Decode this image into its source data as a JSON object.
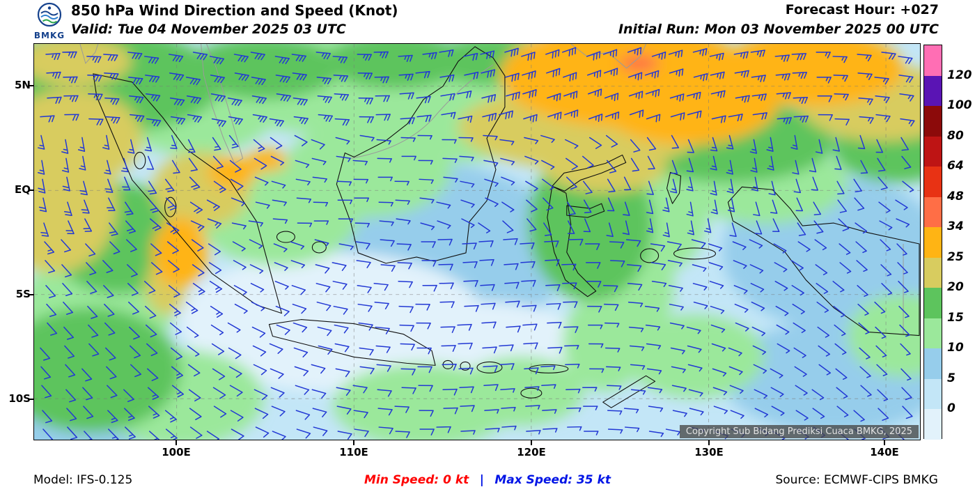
{
  "header": {
    "logo": {
      "text": "BMKG",
      "icon": "bmkg-logo"
    },
    "title": "850 hPa Wind Direction and Speed (Knot)",
    "valid": "Valid: Tue 04 November 2025 03 UTC",
    "forecast_hour": "Forecast Hour: +027",
    "initial_run": "Initial Run: Mon 03 November 2025 00 UTC"
  },
  "map": {
    "lat_ticks": [
      "5N",
      "EQ",
      "5S",
      "10S"
    ],
    "lon_ticks": [
      "100E",
      "110E",
      "120E",
      "130E",
      "140E"
    ],
    "copyright": "Copyright Sub Bidang Prediksi Cuaca BMKG, 2025",
    "barb_color": "#2238D4"
  },
  "legend": {
    "labels": [
      "120",
      "100",
      "80",
      "64",
      "48",
      "34",
      "25",
      "20",
      "15",
      "10",
      "5",
      "0"
    ],
    "colors_top_to_bottom": [
      "#FF6EB4",
      "#5A14B4",
      "#8C0A0A",
      "#BE1414",
      "#E83214",
      "#FF6E46",
      "#FFB414",
      "#D8CC5F",
      "#5DC45D",
      "#9BE89B",
      "#96CDEB",
      "#C3E6F7",
      "#E2F2FB"
    ]
  },
  "footer": {
    "model": "Model: IFS-0.125",
    "min_speed": "Min Speed:  0 kt",
    "separator": "|",
    "max_speed": "Max Speed:  35 kt",
    "source": "Source: ECMWF-CIPS BMKG",
    "min_color": "#FF0000",
    "max_color": "#0014E6"
  },
  "chart_data": {
    "type": "heatmap",
    "title": "850 hPa Wind Direction and Speed (Knot)",
    "valid": "Tue 04 November 2025 03 UTC",
    "initial_run": "Mon 03 November 2025 00 UTC",
    "forecast_hour": "+027",
    "model": "IFS-0.125",
    "source": "ECMWF-CIPS BMKG",
    "units": "knot",
    "min_speed_kt": 0,
    "max_speed_kt": 35,
    "legend_levels_kt": [
      0,
      5,
      10,
      15,
      20,
      25,
      34,
      48,
      64,
      80,
      100,
      120
    ],
    "x_axis_lon": [
      "100E",
      "110E",
      "120E",
      "130E",
      "140E"
    ],
    "y_axis_lat": [
      "5N",
      "EQ",
      "5S",
      "10S"
    ],
    "overlay": "wind barbs (direction and speed)"
  }
}
